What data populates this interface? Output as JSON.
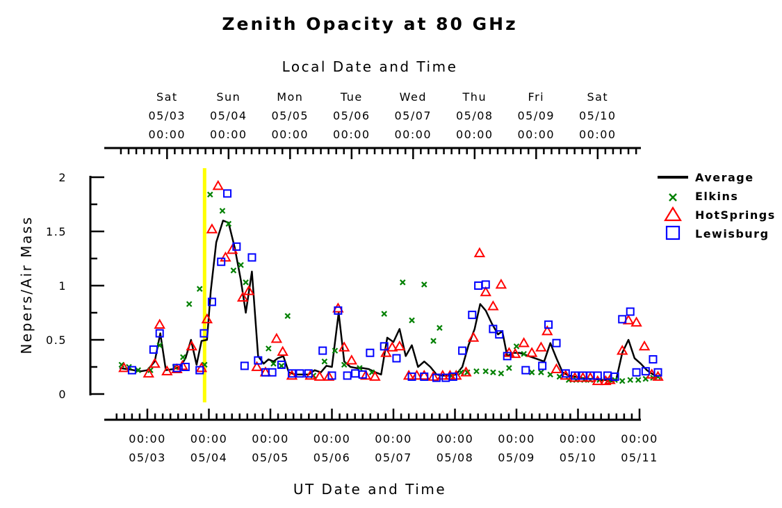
{
  "chart_data": {
    "type": "scatter",
    "title": "Zenith Opacity at 80 GHz",
    "top_axis_label": "Local Date and Time",
    "xlabel": "UT Date and Time",
    "ylabel": "Nepers/Air Mass",
    "ylim": [
      0,
      2
    ],
    "y_ticks": [
      {
        "value": 0,
        "label": "0"
      },
      {
        "value": 0.5,
        "label": "0.5"
      },
      {
        "value": 1,
        "label": "1"
      },
      {
        "value": 1.5,
        "label": "1.5"
      },
      {
        "value": 2,
        "label": "2"
      }
    ],
    "x_unit": "days since 05/02 00:00 UT",
    "xlim": [
      -0.5,
      8.6
    ],
    "bottom_ticks": [
      {
        "day": 0,
        "time": "00:00",
        "date": "05/03"
      },
      {
        "day": 1,
        "time": "00:00",
        "date": "05/04"
      },
      {
        "day": 2,
        "time": "00:00",
        "date": "05/05"
      },
      {
        "day": 3,
        "time": "00:00",
        "date": "05/06"
      },
      {
        "day": 4,
        "time": "00:00",
        "date": "05/07"
      },
      {
        "day": 5,
        "time": "00:00",
        "date": "05/08"
      },
      {
        "day": 6,
        "time": "00:00",
        "date": "05/09"
      },
      {
        "day": 7,
        "time": "00:00",
        "date": "05/10"
      },
      {
        "day": 8,
        "time": "00:00",
        "date": "05/11"
      }
    ],
    "top_ticks": [
      {
        "day": 0.32,
        "weekday": "Sat",
        "date": "05/03",
        "time": "00:00"
      },
      {
        "day": 1.32,
        "weekday": "Sun",
        "date": "05/04",
        "time": "00:00"
      },
      {
        "day": 2.32,
        "weekday": "Mon",
        "date": "05/05",
        "time": "00:00"
      },
      {
        "day": 3.32,
        "weekday": "Tue",
        "date": "05/06",
        "time": "00:00"
      },
      {
        "day": 4.32,
        "weekday": "Wed",
        "date": "05/07",
        "time": "00:00"
      },
      {
        "day": 5.32,
        "weekday": "Thu",
        "date": "05/08",
        "time": "00:00"
      },
      {
        "day": 6.32,
        "weekday": "Fri",
        "date": "05/09",
        "time": "00:00"
      },
      {
        "day": 7.32,
        "weekday": "Sat",
        "date": "05/10",
        "time": "00:00"
      }
    ],
    "highlight": {
      "day": 0.93,
      "color": "#ffff00"
    },
    "legend": {
      "placement": "right"
    },
    "series": [
      {
        "name": "Average",
        "kind": "line",
        "color": "#000000",
        "points": [
          [
            -0.45,
            0.24
          ],
          [
            -0.33,
            0.23
          ],
          [
            -0.22,
            0.22
          ],
          [
            -0.1,
            0.21
          ],
          [
            0.0,
            0.22
          ],
          [
            0.12,
            0.3
          ],
          [
            0.21,
            0.56
          ],
          [
            0.3,
            0.22
          ],
          [
            0.42,
            0.23
          ],
          [
            0.53,
            0.25
          ],
          [
            0.62,
            0.33
          ],
          [
            0.71,
            0.5
          ],
          [
            0.8,
            0.27
          ],
          [
            0.88,
            0.49
          ],
          [
            0.97,
            0.5
          ],
          [
            1.03,
            0.95
          ],
          [
            1.12,
            1.4
          ],
          [
            1.23,
            1.6
          ],
          [
            1.32,
            1.58
          ],
          [
            1.42,
            1.35
          ],
          [
            1.52,
            1.05
          ],
          [
            1.6,
            0.75
          ],
          [
            1.7,
            1.13
          ],
          [
            1.8,
            0.35
          ],
          [
            1.89,
            0.28
          ],
          [
            1.97,
            0.32
          ],
          [
            2.05,
            0.3
          ],
          [
            2.12,
            0.33
          ],
          [
            2.21,
            0.35
          ],
          [
            2.3,
            0.2
          ],
          [
            2.4,
            0.18
          ],
          [
            2.52,
            0.18
          ],
          [
            2.62,
            0.18
          ],
          [
            2.72,
            0.22
          ],
          [
            2.82,
            0.2
          ],
          [
            2.91,
            0.26
          ],
          [
            3.0,
            0.25
          ],
          [
            3.11,
            0.75
          ],
          [
            3.2,
            0.3
          ],
          [
            3.3,
            0.25
          ],
          [
            3.4,
            0.24
          ],
          [
            3.5,
            0.24
          ],
          [
            3.6,
            0.23
          ],
          [
            3.71,
            0.2
          ],
          [
            3.8,
            0.18
          ],
          [
            3.9,
            0.52
          ],
          [
            4.0,
            0.48
          ],
          [
            4.1,
            0.6
          ],
          [
            4.2,
            0.35
          ],
          [
            4.3,
            0.45
          ],
          [
            4.4,
            0.25
          ],
          [
            4.5,
            0.3
          ],
          [
            4.6,
            0.25
          ],
          [
            4.7,
            0.18
          ],
          [
            4.8,
            0.17
          ],
          [
            4.92,
            0.17
          ],
          [
            5.02,
            0.18
          ],
          [
            5.12,
            0.25
          ],
          [
            5.22,
            0.45
          ],
          [
            5.32,
            0.6
          ],
          [
            5.41,
            0.83
          ],
          [
            5.5,
            0.77
          ],
          [
            5.6,
            0.65
          ],
          [
            5.7,
            0.55
          ],
          [
            5.77,
            0.58
          ],
          [
            5.85,
            0.35
          ],
          [
            5.95,
            0.38
          ],
          [
            6.05,
            0.38
          ],
          [
            6.15,
            0.36
          ],
          [
            6.25,
            0.34
          ],
          [
            6.35,
            0.32
          ],
          [
            6.45,
            0.3
          ],
          [
            6.55,
            0.47
          ],
          [
            6.65,
            0.33
          ],
          [
            6.75,
            0.2
          ],
          [
            6.85,
            0.17
          ],
          [
            6.95,
            0.16
          ],
          [
            7.05,
            0.15
          ],
          [
            7.15,
            0.14
          ],
          [
            7.25,
            0.14
          ],
          [
            7.35,
            0.13
          ],
          [
            7.45,
            0.13
          ],
          [
            7.55,
            0.12
          ],
          [
            7.62,
            0.13
          ],
          [
            7.72,
            0.38
          ],
          [
            7.82,
            0.5
          ],
          [
            7.92,
            0.33
          ],
          [
            8.02,
            0.28
          ],
          [
            8.12,
            0.22
          ],
          [
            8.22,
            0.18
          ],
          [
            8.3,
            0.16
          ]
        ]
      },
      {
        "name": "Elkins",
        "kind": "x",
        "color": "#008000",
        "points": [
          [
            -0.42,
            0.27
          ],
          [
            -0.3,
            0.25
          ],
          [
            -0.15,
            0.22
          ],
          [
            0.05,
            0.22
          ],
          [
            0.2,
            0.45
          ],
          [
            0.45,
            0.25
          ],
          [
            0.58,
            0.34
          ],
          [
            0.68,
            0.83
          ],
          [
            0.85,
            0.97
          ],
          [
            0.93,
            0.27
          ],
          [
            1.02,
            1.84
          ],
          [
            1.22,
            1.69
          ],
          [
            1.32,
            1.57
          ],
          [
            1.4,
            1.14
          ],
          [
            1.52,
            1.19
          ],
          [
            1.6,
            1.03
          ],
          [
            1.97,
            0.42
          ],
          [
            2.05,
            0.28
          ],
          [
            2.18,
            0.26
          ],
          [
            2.28,
            0.72
          ],
          [
            2.7,
            0.17
          ],
          [
            2.88,
            0.3
          ],
          [
            3.05,
            0.4
          ],
          [
            3.2,
            0.27
          ],
          [
            3.45,
            0.24
          ],
          [
            3.65,
            0.2
          ],
          [
            3.85,
            0.74
          ],
          [
            4.15,
            1.03
          ],
          [
            4.3,
            0.68
          ],
          [
            4.5,
            1.01
          ],
          [
            4.65,
            0.49
          ],
          [
            4.75,
            0.61
          ],
          [
            4.95,
            0.17
          ],
          [
            5.1,
            0.2
          ],
          [
            5.2,
            0.2
          ],
          [
            5.35,
            0.21
          ],
          [
            5.5,
            0.21
          ],
          [
            5.62,
            0.2
          ],
          [
            5.75,
            0.19
          ],
          [
            5.88,
            0.24
          ],
          [
            6.0,
            0.44
          ],
          [
            6.12,
            0.37
          ],
          [
            6.25,
            0.2
          ],
          [
            6.4,
            0.2
          ],
          [
            6.55,
            0.18
          ],
          [
            6.7,
            0.16
          ],
          [
            6.85,
            0.13
          ],
          [
            6.97,
            0.13
          ],
          [
            7.1,
            0.13
          ],
          [
            7.2,
            0.13
          ],
          [
            7.35,
            0.13
          ],
          [
            7.5,
            0.13
          ],
          [
            7.6,
            0.13
          ],
          [
            7.72,
            0.12
          ],
          [
            7.85,
            0.13
          ],
          [
            7.98,
            0.13
          ],
          [
            8.1,
            0.14
          ],
          [
            8.22,
            0.15
          ],
          [
            8.3,
            0.16
          ]
        ]
      },
      {
        "name": "HotSprings",
        "kind": "triangle",
        "color": "#ff0000",
        "points": [
          [
            -0.38,
            0.24
          ],
          [
            0.02,
            0.19
          ],
          [
            0.12,
            0.28
          ],
          [
            0.2,
            0.64
          ],
          [
            0.32,
            0.21
          ],
          [
            0.48,
            0.23
          ],
          [
            0.57,
            0.26
          ],
          [
            0.72,
            0.44
          ],
          [
            0.88,
            0.24
          ],
          [
            0.97,
            0.69
          ],
          [
            1.05,
            1.52
          ],
          [
            1.15,
            1.92
          ],
          [
            1.27,
            1.26
          ],
          [
            1.38,
            1.33
          ],
          [
            1.55,
            0.89
          ],
          [
            1.65,
            0.95
          ],
          [
            1.78,
            0.25
          ],
          [
            1.92,
            0.2
          ],
          [
            2.1,
            0.51
          ],
          [
            2.2,
            0.39
          ],
          [
            2.35,
            0.17
          ],
          [
            2.65,
            0.17
          ],
          [
            2.8,
            0.16
          ],
          [
            2.95,
            0.16
          ],
          [
            3.1,
            0.79
          ],
          [
            3.2,
            0.43
          ],
          [
            3.32,
            0.31
          ],
          [
            3.55,
            0.17
          ],
          [
            3.7,
            0.16
          ],
          [
            3.88,
            0.38
          ],
          [
            3.98,
            0.43
          ],
          [
            4.1,
            0.44
          ],
          [
            4.25,
            0.17
          ],
          [
            4.38,
            0.17
          ],
          [
            4.5,
            0.17
          ],
          [
            4.65,
            0.16
          ],
          [
            4.8,
            0.17
          ],
          [
            4.92,
            0.17
          ],
          [
            5.02,
            0.17
          ],
          [
            5.18,
            0.2
          ],
          [
            5.3,
            0.52
          ],
          [
            5.4,
            1.3
          ],
          [
            5.5,
            0.94
          ],
          [
            5.62,
            0.81
          ],
          [
            5.75,
            1.01
          ],
          [
            5.88,
            0.38
          ],
          [
            5.98,
            0.37
          ],
          [
            6.12,
            0.47
          ],
          [
            6.25,
            0.38
          ],
          [
            6.4,
            0.43
          ],
          [
            6.5,
            0.58
          ],
          [
            6.65,
            0.23
          ],
          [
            6.8,
            0.17
          ],
          [
            6.95,
            0.15
          ],
          [
            7.08,
            0.15
          ],
          [
            7.2,
            0.15
          ],
          [
            7.32,
            0.12
          ],
          [
            7.45,
            0.12
          ],
          [
            7.52,
            0.13
          ],
          [
            7.72,
            0.4
          ],
          [
            7.82,
            0.68
          ],
          [
            7.95,
            0.66
          ],
          [
            8.08,
            0.44
          ],
          [
            8.2,
            0.18
          ],
          [
            8.3,
            0.16
          ]
        ]
      },
      {
        "name": "Lewisburg",
        "kind": "square",
        "color": "#0000ff",
        "points": [
          [
            -0.25,
            0.22
          ],
          [
            0.1,
            0.41
          ],
          [
            0.2,
            0.56
          ],
          [
            0.48,
            0.24
          ],
          [
            0.62,
            0.25
          ],
          [
            0.85,
            0.22
          ],
          [
            0.92,
            0.56
          ],
          [
            1.05,
            0.85
          ],
          [
            1.2,
            1.22
          ],
          [
            1.3,
            1.85
          ],
          [
            1.45,
            1.36
          ],
          [
            1.58,
            0.26
          ],
          [
            1.7,
            1.26
          ],
          [
            1.8,
            0.31
          ],
          [
            1.92,
            0.2
          ],
          [
            2.03,
            0.2
          ],
          [
            2.18,
            0.27
          ],
          [
            2.35,
            0.19
          ],
          [
            2.48,
            0.19
          ],
          [
            2.62,
            0.19
          ],
          [
            2.85,
            0.4
          ],
          [
            3.0,
            0.17
          ],
          [
            3.1,
            0.77
          ],
          [
            3.25,
            0.17
          ],
          [
            3.38,
            0.19
          ],
          [
            3.5,
            0.18
          ],
          [
            3.62,
            0.38
          ],
          [
            3.85,
            0.44
          ],
          [
            4.05,
            0.33
          ],
          [
            4.3,
            0.16
          ],
          [
            4.5,
            0.16
          ],
          [
            4.7,
            0.15
          ],
          [
            4.85,
            0.15
          ],
          [
            4.97,
            0.16
          ],
          [
            5.12,
            0.4
          ],
          [
            5.28,
            0.73
          ],
          [
            5.38,
            1.0
          ],
          [
            5.5,
            1.01
          ],
          [
            5.62,
            0.6
          ],
          [
            5.72,
            0.55
          ],
          [
            5.85,
            0.35
          ],
          [
            6.15,
            0.22
          ],
          [
            6.42,
            0.26
          ],
          [
            6.52,
            0.64
          ],
          [
            6.65,
            0.47
          ],
          [
            6.8,
            0.19
          ],
          [
            6.95,
            0.17
          ],
          [
            7.08,
            0.17
          ],
          [
            7.2,
            0.17
          ],
          [
            7.32,
            0.17
          ],
          [
            7.48,
            0.17
          ],
          [
            7.6,
            0.16
          ],
          [
            7.72,
            0.69
          ],
          [
            7.85,
            0.76
          ],
          [
            7.95,
            0.2
          ],
          [
            8.1,
            0.21
          ],
          [
            8.22,
            0.32
          ],
          [
            8.3,
            0.2
          ]
        ]
      }
    ]
  }
}
